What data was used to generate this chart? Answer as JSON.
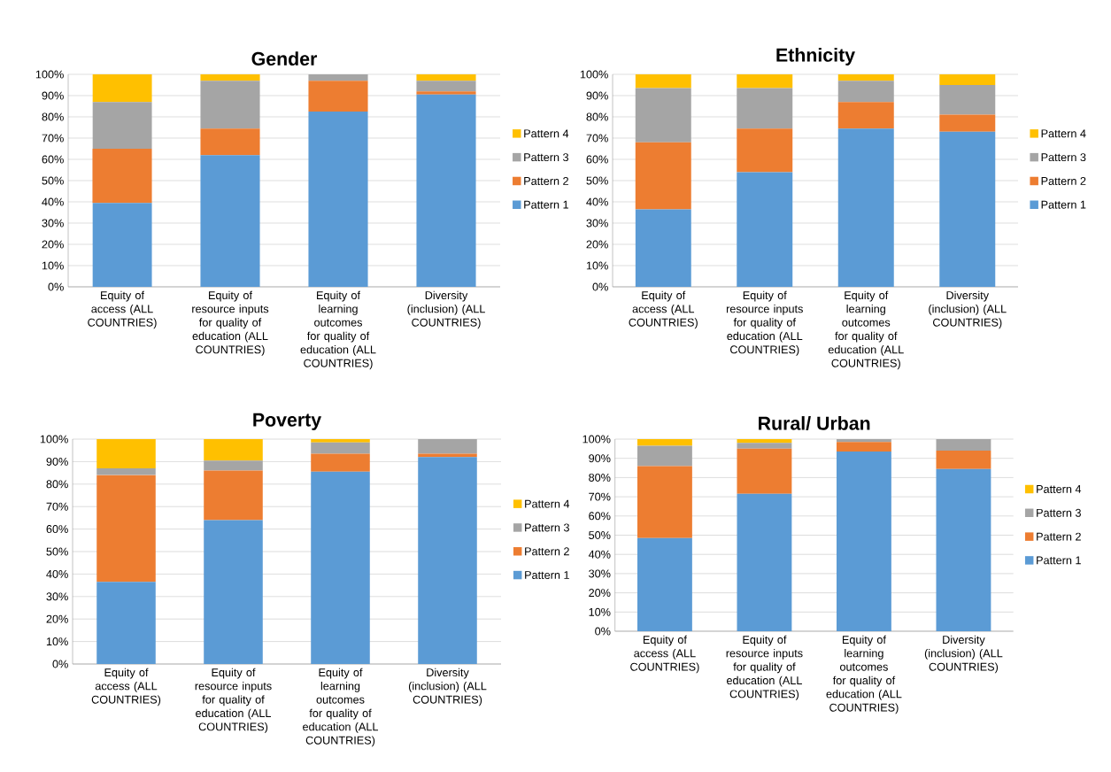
{
  "chart_data": [
    {
      "type": "bar",
      "stacked": true,
      "title": "Gender",
      "categories": [
        "Equity of access (ALL COUNTRIES)",
        "Equity of resource inputs for quality of education (ALL COUNTRIES)",
        "Equity of learning outcomes for quality of education (ALL COUNTRIES)",
        "Diversity (inclusion) (ALL COUNTRIES)"
      ],
      "series": [
        {
          "name": "Pattern 1",
          "color": "#5b9bd5",
          "values": [
            39.5,
            62,
            82.5,
            90.5
          ]
        },
        {
          "name": "Pattern 2",
          "color": "#ed7d31",
          "values": [
            25.5,
            12.5,
            14.5,
            1.5
          ]
        },
        {
          "name": "Pattern 3",
          "color": "#a5a5a5",
          "values": [
            22,
            22.5,
            3,
            5
          ]
        },
        {
          "name": "Pattern 4",
          "color": "#ffc000",
          "values": [
            13,
            3,
            0,
            3
          ]
        }
      ],
      "ylim": [
        0,
        100
      ],
      "yticks": [
        {
          "value": 0,
          "label": "0%"
        },
        {
          "value": 10,
          "label": "10%"
        },
        {
          "value": 20,
          "label": "20%"
        },
        {
          "value": 30,
          "label": "30%"
        },
        {
          "value": 40,
          "label": "40%"
        },
        {
          "value": 50,
          "label": "50%"
        },
        {
          "value": 60,
          "label": "60%"
        },
        {
          "value": 70,
          "label": "70%"
        },
        {
          "value": 80,
          "label": "80%"
        },
        {
          "value": 90,
          "label": "90%"
        },
        {
          "value": 100,
          "label": "100%"
        }
      ],
      "grid": "y",
      "legend": "right"
    },
    {
      "type": "bar",
      "stacked": true,
      "title": "Ethnicity",
      "categories": [
        "Equity of access (ALL COUNTRIES)",
        "Equity of resource inputs for quality of education (ALL COUNTRIES)",
        "Equity of learning outcomes for quality of education (ALL COUNTRIES)",
        "Diversity (inclusion) (ALL COUNTRIES)"
      ],
      "series": [
        {
          "name": "Pattern 1",
          "color": "#5b9bd5",
          "values": [
            36.5,
            54,
            74.5,
            73
          ]
        },
        {
          "name": "Pattern 2",
          "color": "#ed7d31",
          "values": [
            31.5,
            20.5,
            12.5,
            8
          ]
        },
        {
          "name": "Pattern 3",
          "color": "#a5a5a5",
          "values": [
            25.5,
            19,
            10,
            14
          ]
        },
        {
          "name": "Pattern 4",
          "color": "#ffc000",
          "values": [
            6.5,
            6.5,
            3,
            5
          ]
        }
      ],
      "ylim": [
        0,
        100
      ],
      "yticks": [
        {
          "value": 0,
          "label": "0%"
        },
        {
          "value": 10,
          "label": "10%"
        },
        {
          "value": 20,
          "label": "20%"
        },
        {
          "value": 30,
          "label": "30%"
        },
        {
          "value": 40,
          "label": "40%"
        },
        {
          "value": 50,
          "label": "50%"
        },
        {
          "value": 60,
          "label": "60%"
        },
        {
          "value": 70,
          "label": "70%"
        },
        {
          "value": 80,
          "label": "80%"
        },
        {
          "value": 90,
          "label": "90%"
        },
        {
          "value": 100,
          "label": "100%"
        }
      ],
      "grid": "y",
      "legend": "right"
    },
    {
      "type": "bar",
      "stacked": true,
      "title": "Poverty",
      "categories": [
        "Equity of access (ALL COUNTRIES)",
        "Equity of resource inputs for quality of education (ALL COUNTRIES)",
        "Equity of learning outcomes for quality of education (ALL COUNTRIES)",
        "Diversity (inclusion) (ALL COUNTRIES)"
      ],
      "series": [
        {
          "name": "Pattern 1",
          "color": "#5b9bd5",
          "values": [
            36.5,
            64,
            85.5,
            92
          ]
        },
        {
          "name": "Pattern 2",
          "color": "#ed7d31",
          "values": [
            47.5,
            22,
            8,
            1.5
          ]
        },
        {
          "name": "Pattern 3",
          "color": "#a5a5a5",
          "values": [
            3,
            4.5,
            5,
            6.5
          ]
        },
        {
          "name": "Pattern 4",
          "color": "#ffc000",
          "values": [
            13,
            9.5,
            1.5,
            0
          ]
        }
      ],
      "ylim": [
        0,
        100
      ],
      "yticks": [
        {
          "value": 0,
          "label": "0%"
        },
        {
          "value": 10,
          "label": "10%"
        },
        {
          "value": 20,
          "label": "20%"
        },
        {
          "value": 30,
          "label": "30%"
        },
        {
          "value": 40,
          "label": "40%"
        },
        {
          "value": 50,
          "label": "50%"
        },
        {
          "value": 60,
          "label": "60%"
        },
        {
          "value": 70,
          "label": "70%"
        },
        {
          "value": 80,
          "label": "80%"
        },
        {
          "value": 90,
          "label": "90%"
        },
        {
          "value": 100,
          "label": "100%"
        }
      ],
      "grid": "y",
      "legend": "right"
    },
    {
      "type": "bar",
      "stacked": true,
      "title": "Rural/ Urban",
      "categories": [
        "Equity of access (ALL COUNTRIES)",
        "Equity of resource inputs for quality of education (ALL COUNTRIES)",
        "Equity of learning outcomes for quality of education (ALL COUNTRIES)",
        "Diversity (inclusion) (ALL COUNTRIES)"
      ],
      "series": [
        {
          "name": "Pattern 1",
          "color": "#5b9bd5",
          "values": [
            48.5,
            71.5,
            93.5,
            84.5
          ]
        },
        {
          "name": "Pattern 2",
          "color": "#ed7d31",
          "values": [
            37.5,
            23.5,
            5,
            9.5
          ]
        },
        {
          "name": "Pattern 3",
          "color": "#a5a5a5",
          "values": [
            10.5,
            3,
            1.5,
            6
          ]
        },
        {
          "name": "Pattern 4",
          "color": "#ffc000",
          "values": [
            3.5,
            2,
            0,
            0
          ]
        }
      ],
      "ylim": [
        0,
        100
      ],
      "yticks": [
        {
          "value": 0,
          "label": "0%"
        },
        {
          "value": 10,
          "label": "10%"
        },
        {
          "value": 20,
          "label": "20%"
        },
        {
          "value": 30,
          "label": "30%"
        },
        {
          "value": 40,
          "label": "40%"
        },
        {
          "value": 50,
          "label": "50%"
        },
        {
          "value": 60,
          "label": "60%"
        },
        {
          "value": 70,
          "label": "70%"
        },
        {
          "value": 80,
          "label": "80%"
        },
        {
          "value": 90,
          "label": "90%"
        },
        {
          "value": 100,
          "label": "100%"
        }
      ],
      "grid": "y",
      "legend": "right"
    }
  ]
}
